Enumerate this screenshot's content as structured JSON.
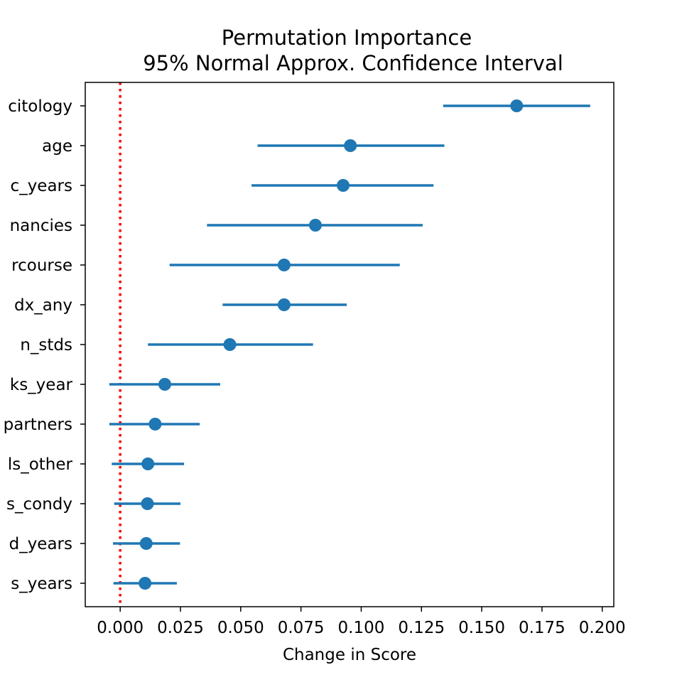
{
  "chart_data": {
    "type": "scatter",
    "title_line1": "Permutation Importance",
    "title_line2": "95% Normal Approx. Confidence Interval",
    "xlabel": "Change in Score",
    "ylabel": "",
    "xlim": [
      -0.0145,
      0.2048
    ],
    "x_ticks": [
      0.0,
      0.025,
      0.05,
      0.075,
      0.1,
      0.125,
      0.15,
      0.175,
      0.2
    ],
    "x_tick_labels": [
      "0.000",
      "0.025",
      "0.050",
      "0.075",
      "0.100",
      "0.125",
      "0.150",
      "0.175",
      "0.200"
    ],
    "reference_line": {
      "x": 0.0,
      "color": "#ff0000",
      "style": "dotted"
    },
    "point_color": "#1f77b4",
    "grid": false,
    "features": [
      {
        "label": "citology",
        "value": 0.1645,
        "lower": 0.134,
        "upper": 0.195
      },
      {
        "label": "age",
        "value": 0.0955,
        "lower": 0.057,
        "upper": 0.1345
      },
      {
        "label": "c_years",
        "value": 0.0925,
        "lower": 0.0545,
        "upper": 0.13
      },
      {
        "label": "nancies",
        "value": 0.081,
        "lower": 0.036,
        "upper": 0.1255
      },
      {
        "label": "rcourse",
        "value": 0.068,
        "lower": 0.0205,
        "upper": 0.116
      },
      {
        "label": "dx_any",
        "value": 0.068,
        "lower": 0.0425,
        "upper": 0.094
      },
      {
        "label": "n_stds",
        "value": 0.0455,
        "lower": 0.0115,
        "upper": 0.08
      },
      {
        "label": "ks_year",
        "value": 0.0185,
        "lower": -0.0045,
        "upper": 0.0415
      },
      {
        "label": "partners",
        "value": 0.0145,
        "lower": -0.0045,
        "upper": 0.033
      },
      {
        "label": "ls_other",
        "value": 0.0115,
        "lower": -0.0035,
        "upper": 0.0265
      },
      {
        "label": "s_condy",
        "value": 0.0113,
        "lower": -0.0025,
        "upper": 0.025
      },
      {
        "label": "d_years",
        "value": 0.0108,
        "lower": -0.003,
        "upper": 0.0248
      },
      {
        "label": "s_years",
        "value": 0.0103,
        "lower": -0.0028,
        "upper": 0.0235
      }
    ]
  }
}
